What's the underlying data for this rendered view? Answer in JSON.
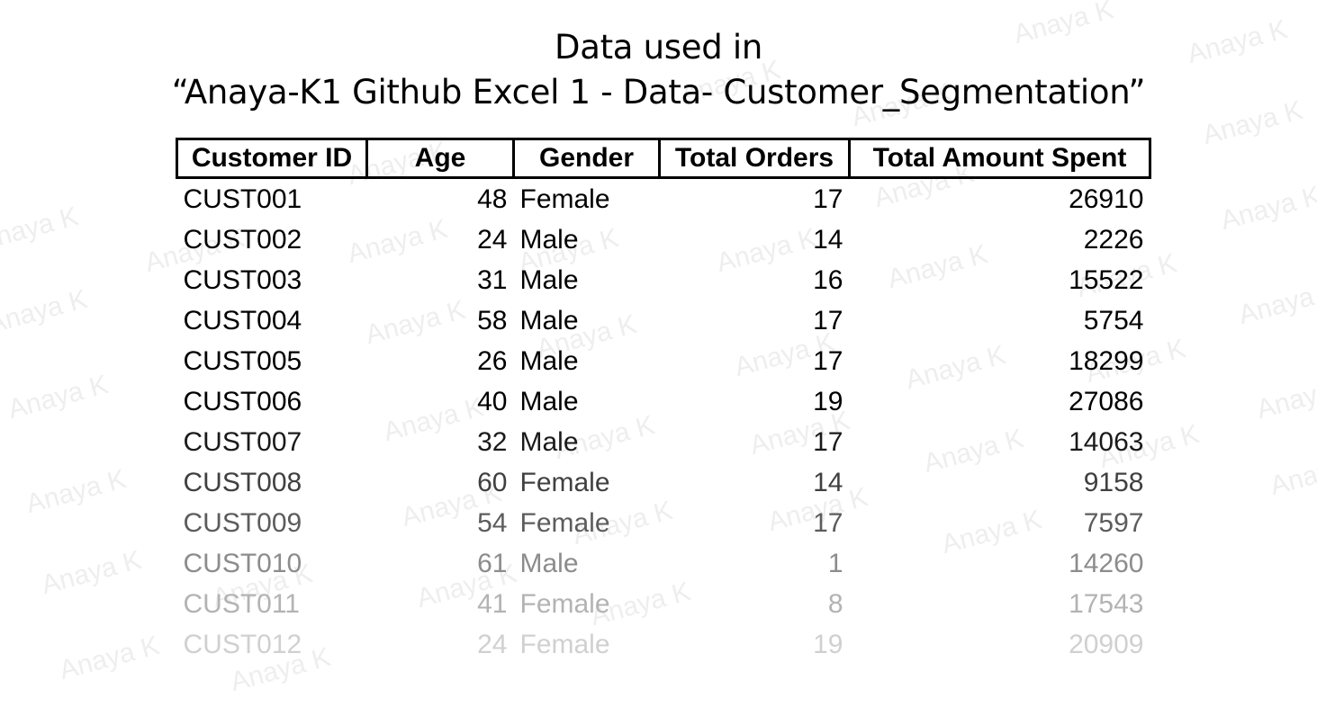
{
  "title": {
    "line1": "Data used in",
    "line2": "“Anaya-K1 Github Excel 1 - Data- Customer_Segmentation”"
  },
  "watermark": "Anaya K",
  "table": {
    "headers": [
      "Customer ID",
      "Age",
      "Gender",
      "Total Orders",
      "Total Amount Spent"
    ],
    "rows": [
      [
        "CUST001",
        "48",
        "Female",
        "17",
        "26910"
      ],
      [
        "CUST002",
        "24",
        "Male",
        "14",
        "2226"
      ],
      [
        "CUST003",
        "31",
        "Male",
        "16",
        "15522"
      ],
      [
        "CUST004",
        "58",
        "Male",
        "17",
        "5754"
      ],
      [
        "CUST005",
        "26",
        "Male",
        "17",
        "18299"
      ],
      [
        "CUST006",
        "40",
        "Male",
        "19",
        "27086"
      ],
      [
        "CUST007",
        "32",
        "Male",
        "17",
        "14063"
      ],
      [
        "CUST008",
        "60",
        "Female",
        "14",
        "9158"
      ],
      [
        "CUST009",
        "54",
        "Female",
        "17",
        "7597"
      ],
      [
        "CUST010",
        "61",
        "Male",
        "1",
        "14260"
      ],
      [
        "CUST011",
        "41",
        "Female",
        "8",
        "17543"
      ],
      [
        "CUST012",
        "24",
        "Female",
        "19",
        "20909"
      ]
    ],
    "row_text_colors": [
      "#000000",
      "#000000",
      "#000000",
      "#000000",
      "#000000",
      "#000000",
      "#1a1a1a",
      "#404040",
      "#5c5c5c",
      "#8c8c8c",
      "#b3b3b3",
      "#d0d0d0"
    ]
  }
}
